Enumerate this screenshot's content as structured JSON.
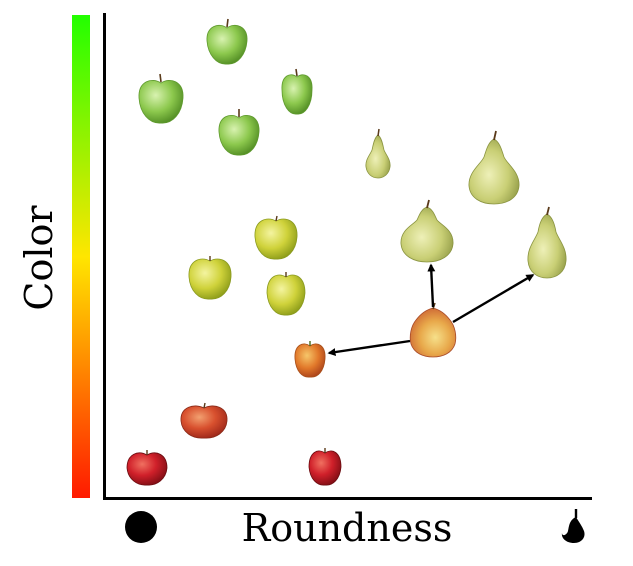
{
  "labels": {
    "y_axis": "Color",
    "x_axis": "Roundness"
  },
  "colors": {
    "gradient_top": "#22ff00",
    "gradient_mid": "#ffe600",
    "gradient_bottom": "#ff1a00",
    "axis": "#000000"
  },
  "icons": {
    "round_end": "round-shape-icon",
    "pear_end": "pear-shape-icon"
  },
  "fruits": [
    {
      "id": "green-apple-1",
      "kind": "apple",
      "tone": "green"
    },
    {
      "id": "green-apple-2",
      "kind": "apple",
      "tone": "green"
    },
    {
      "id": "green-apple-3",
      "kind": "apple",
      "tone": "green"
    },
    {
      "id": "green-apple-4",
      "kind": "apple",
      "tone": "green"
    },
    {
      "id": "yellow-apple-1",
      "kind": "apple",
      "tone": "yellow"
    },
    {
      "id": "yellow-apple-2",
      "kind": "apple",
      "tone": "yellow"
    },
    {
      "id": "yellow-apple-3",
      "kind": "apple",
      "tone": "yellow"
    },
    {
      "id": "orange-apple",
      "kind": "apple",
      "tone": "orange"
    },
    {
      "id": "red-apple-1",
      "kind": "apple",
      "tone": "red-orange"
    },
    {
      "id": "red-apple-2",
      "kind": "apple",
      "tone": "red"
    },
    {
      "id": "red-apple-3",
      "kind": "apple",
      "tone": "red"
    },
    {
      "id": "pear-small",
      "kind": "pear",
      "tone": "yellow-green"
    },
    {
      "id": "pear-large",
      "kind": "pear",
      "tone": "yellow-green"
    },
    {
      "id": "pear-mid",
      "kind": "pear",
      "tone": "yellow-green"
    },
    {
      "id": "pear-right",
      "kind": "pear",
      "tone": "yellow-green"
    },
    {
      "id": "blend-fruit",
      "kind": "pear-apple",
      "tone": "red-yellow"
    }
  ]
}
